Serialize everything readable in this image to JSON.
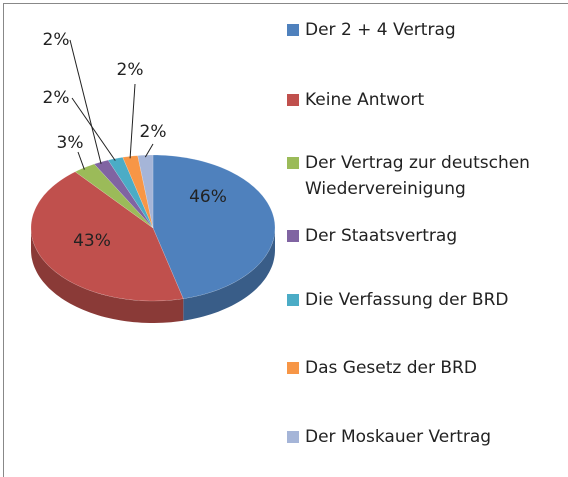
{
  "chart_data": {
    "type": "pie",
    "categories": [
      "Der 2 + 4 Vertrag",
      "Keine Antwort",
      "Der Vertrag zur deutschen Wiedervereinigung",
      "Der Staatsvertrag",
      "Die Verfassung der BRD",
      "Das Gesetz der BRD",
      "Der Moskauer Vertrag"
    ],
    "values": [
      46,
      43,
      3,
      2,
      2,
      2,
      2
    ],
    "value_labels": [
      "46%",
      "43%",
      "3%",
      "2%",
      "2%",
      "2%",
      "2%"
    ],
    "colors": [
      "#4f81bd",
      "#c0504d",
      "#9bbb59",
      "#8064a2",
      "#4bacc6",
      "#f79646",
      "#a5b5d8"
    ],
    "legend": "right"
  }
}
